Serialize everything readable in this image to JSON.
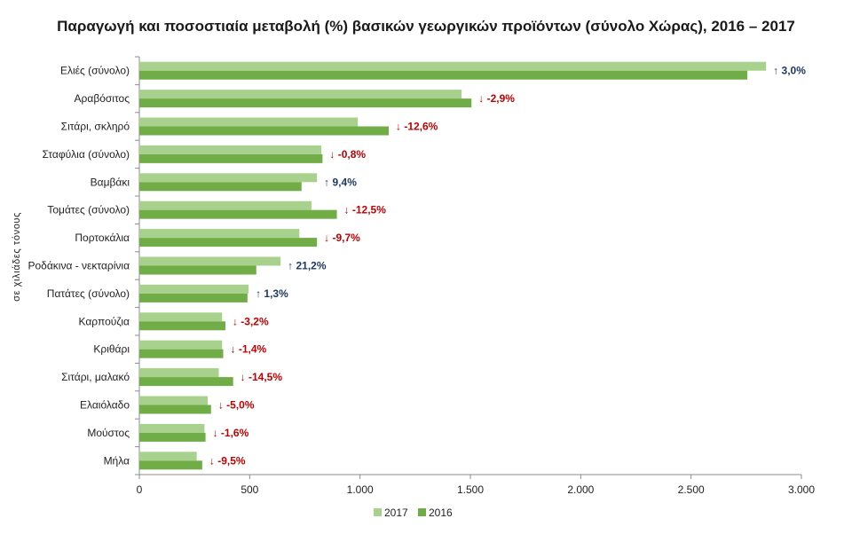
{
  "chart_data": {
    "type": "bar",
    "orientation": "horizontal",
    "title": "Παραγωγή και ποσοστιαία μεταβολή (%)  βασικών γεωργικών προϊόντων (σύνολο Χώρας), 2016 – 2017",
    "ylabel": "σε χιλιάδες τόνους",
    "xlabel": "",
    "xlim": [
      0,
      3000
    ],
    "xticks": [
      0,
      500,
      1000,
      1500,
      2000,
      2500,
      3000
    ],
    "xtick_labels": [
      "0",
      "500",
      "1.000",
      "1.500",
      "2.000",
      "2.500",
      "3.000"
    ],
    "grid": false,
    "legend_position": "bottom",
    "categories": [
      "Ελιές (σύνολο)",
      "Αραβόσιτος",
      "Σιτάρι, σκληρό",
      "Σταφύλια (σύνολο)",
      "Βαμβάκι",
      "Τομάτες (σύνολο)",
      "Πορτοκάλια",
      "Ροδάκινα - νεκταρίνια",
      "Πατάτες (σύνολο)",
      "Καρπούζια",
      "Κριθάρι",
      "Σιτάρι, μαλακό",
      "Ελαιόλαδο",
      "Μούστος",
      "Μήλα"
    ],
    "series": [
      {
        "name": "2017",
        "color": "#a9d18e",
        "values": [
          2840,
          1460,
          990,
          825,
          805,
          780,
          725,
          640,
          495,
          375,
          375,
          360,
          310,
          295,
          260
        ]
      },
      {
        "name": "2016",
        "color": "#70ad47",
        "values": [
          2755,
          1505,
          1130,
          830,
          735,
          895,
          805,
          530,
          490,
          390,
          380,
          425,
          325,
          300,
          285
        ]
      }
    ],
    "changes": [
      {
        "arrow": "↑",
        "text": "3,0%",
        "color": "#1f3864"
      },
      {
        "arrow": "↓",
        "text": "-2,9%",
        "color": "#c00000"
      },
      {
        "arrow": "↓",
        "text": "-12,6%",
        "color": "#c00000"
      },
      {
        "arrow": "↓",
        "text": "-0,8%",
        "color": "#c00000"
      },
      {
        "arrow": "↑",
        "text": "9,4%",
        "color": "#1f3864"
      },
      {
        "arrow": "↓",
        "text": "-12,5%",
        "color": "#c00000"
      },
      {
        "arrow": "↓",
        "text": "-9,7%",
        "color": "#c00000"
      },
      {
        "arrow": "↑",
        "text": "21,2%",
        "color": "#1f3864"
      },
      {
        "arrow": "↑",
        "text": "1,3%",
        "color": "#1f3864"
      },
      {
        "arrow": "↓",
        "text": "-3,2%",
        "color": "#c00000"
      },
      {
        "arrow": "↓",
        "text": "-1,4%",
        "color": "#c00000"
      },
      {
        "arrow": "↓",
        "text": "-14,5%",
        "color": "#c00000"
      },
      {
        "arrow": "↓",
        "text": "-5,0%",
        "color": "#c00000"
      },
      {
        "arrow": "↓",
        "text": "-1,6%",
        "color": "#c00000"
      },
      {
        "arrow": "↓",
        "text": "-9,5%",
        "color": "#c00000"
      }
    ]
  }
}
